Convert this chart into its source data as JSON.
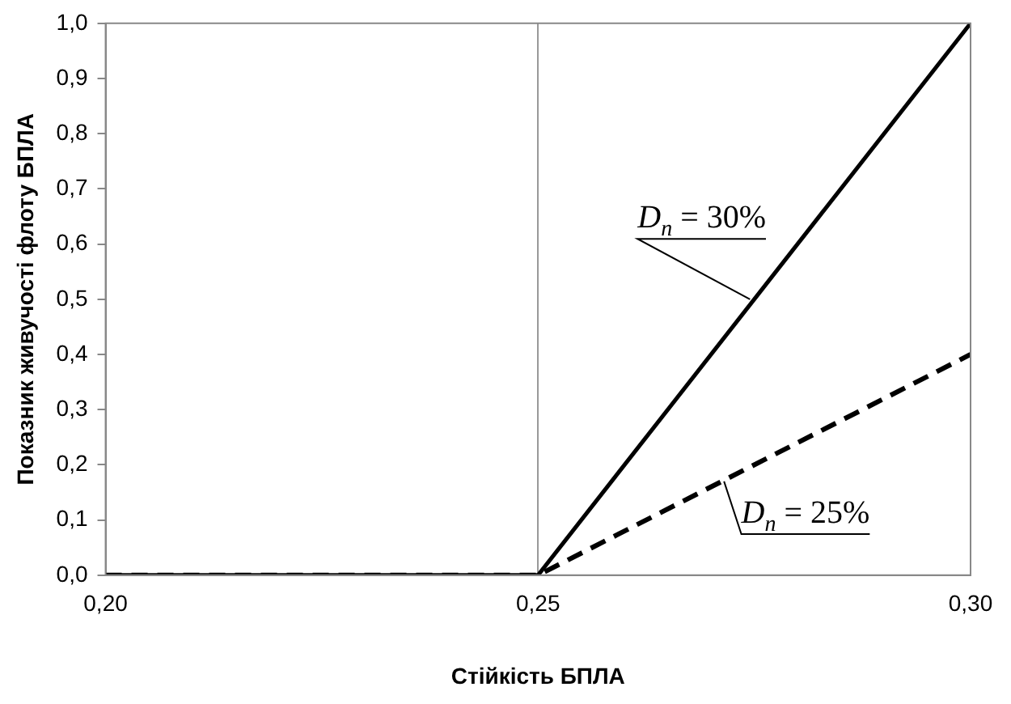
{
  "chart_data": {
    "type": "line",
    "xlabel": "Стійкість БПЛА",
    "ylabel": "Показник живучості флоту БПЛА",
    "series": [
      {
        "name": "D$_{n}$ = 30%",
        "color": "#000000",
        "line_style": "solid",
        "x": [
          0.2,
          0.25,
          0.3
        ],
        "values": [
          0,
          0,
          1.0
        ]
      },
      {
        "name": "D$_{n}$ = 25%",
        "color": "#000000",
        "line_style": "dashed",
        "x": [
          0.2,
          0.25,
          0.3
        ],
        "values": [
          0,
          0,
          0.4
        ]
      }
    ],
    "xlim": [
      0.2,
      0.3
    ],
    "xticks": [
      {
        "value": 0.2,
        "label": "0,20"
      },
      {
        "value": 0.25,
        "label": "0,25"
      },
      {
        "value": 0.3,
        "label": "0,30"
      }
    ],
    "ylim": [
      0,
      1.0
    ],
    "yticks": [
      {
        "value": 0,
        "label": "0,0"
      },
      {
        "value": 0.1,
        "label": "0,1"
      },
      {
        "value": 0.2,
        "label": "0,2"
      },
      {
        "value": 0.3,
        "label": "0,3"
      },
      {
        "value": 0.4,
        "label": "0,4"
      },
      {
        "value": 0.5,
        "label": "0,5"
      },
      {
        "value": 0.6,
        "label": "0,6"
      },
      {
        "value": 0.7,
        "label": "0,7"
      },
      {
        "value": 0.8,
        "label": "0,8"
      },
      {
        "value": 0.9,
        "label": "0,9"
      },
      {
        "value": 1.0,
        "label": "1,0"
      }
    ],
    "grid": "x",
    "legend": false,
    "marker": "none"
  }
}
